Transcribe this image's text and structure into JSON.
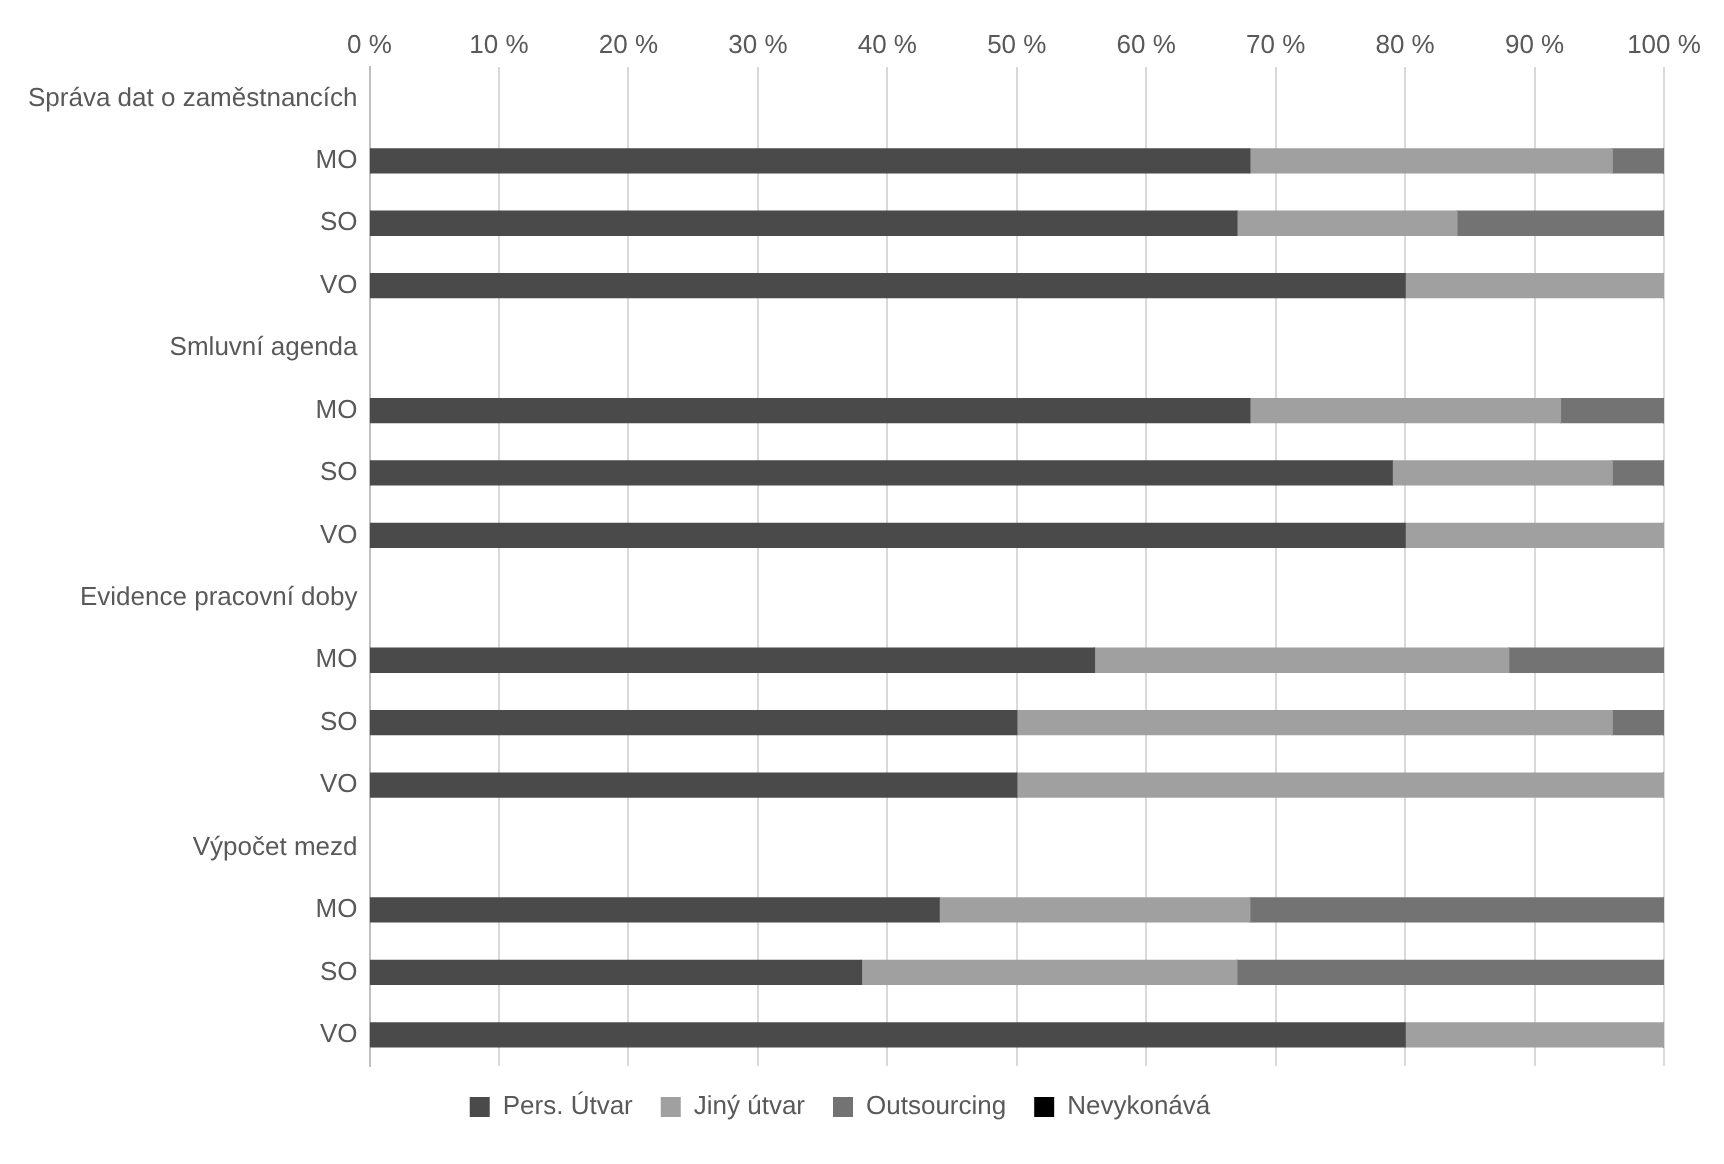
{
  "chart_data": {
    "type": "bar",
    "orientation": "horizontal",
    "stacked": true,
    "categories": [
      "Správa dat o zaměstnancích",
      "MO",
      "SO",
      "VO",
      "Smluvní agenda",
      "MO",
      "SO",
      "VO",
      "Evidence pracovní doby",
      "MO",
      "SO",
      "VO",
      "Výpočet mezd",
      "MO",
      "SO",
      "VO"
    ],
    "series": [
      {
        "name": "Pers. Útvar",
        "color": "#4a4a4a",
        "values": [
          null,
          68,
          67,
          80,
          null,
          68,
          79,
          80,
          null,
          56,
          50,
          50,
          null,
          44,
          38,
          80
        ]
      },
      {
        "name": "Jiný útvar",
        "color": "#a0a0a0",
        "values": [
          null,
          28,
          17,
          20,
          null,
          24,
          17,
          20,
          null,
          32,
          46,
          50,
          null,
          24,
          29,
          20
        ]
      },
      {
        "name": "Outsourcing",
        "color": "#737373",
        "values": [
          null,
          4,
          16,
          0,
          null,
          8,
          4,
          0,
          null,
          12,
          4,
          0,
          null,
          32,
          33,
          0
        ]
      },
      {
        "name": "Nevykonává",
        "color": "#000000",
        "values": [
          null,
          0,
          0,
          0,
          null,
          0,
          0,
          0,
          null,
          0,
          0,
          0,
          null,
          0,
          0,
          0
        ]
      }
    ],
    "xlim": [
      0,
      100
    ],
    "xticks": [
      {
        "value": 0,
        "label": "0 %"
      },
      {
        "value": 10,
        "label": "10 %"
      },
      {
        "value": 20,
        "label": "20 %"
      },
      {
        "value": 30,
        "label": "30 %"
      },
      {
        "value": 40,
        "label": "40 %"
      },
      {
        "value": 50,
        "label": "50 %"
      },
      {
        "value": 60,
        "label": "60 %"
      },
      {
        "value": 70,
        "label": "70 %"
      },
      {
        "value": 80,
        "label": "80 %"
      },
      {
        "value": 90,
        "label": "90 %"
      },
      {
        "value": 100,
        "label": "100 %"
      }
    ],
    "grid": "x",
    "legend": "bottom"
  }
}
